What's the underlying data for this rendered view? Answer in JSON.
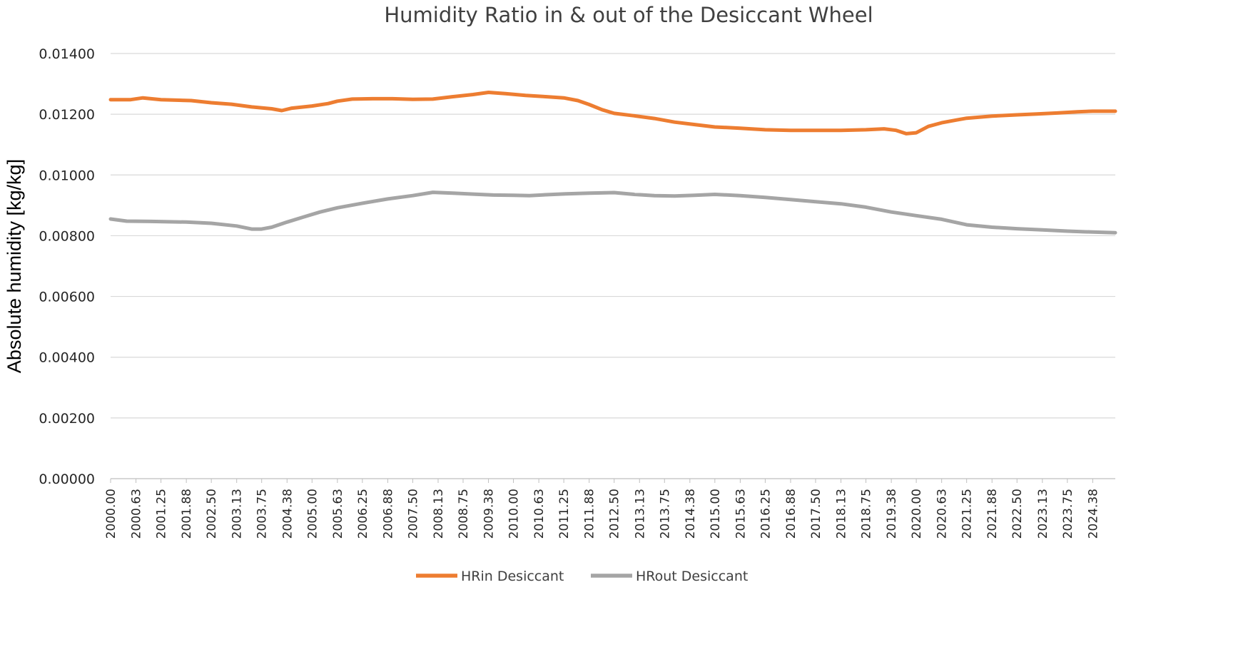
{
  "chart_data": {
    "type": "line",
    "title": "Humidity Ratio in & out of the Desiccant Wheel",
    "xlabel": "",
    "ylabel": "Absolute humidity [kg/kg]",
    "ylim": [
      0,
      0.014
    ],
    "yticks": [
      "0.00000",
      "0.00200",
      "0.00400",
      "0.00600",
      "0.00800",
      "0.01000",
      "0.01200",
      "0.01400"
    ],
    "xlim": [
      2000.0,
      2024.94
    ],
    "xticks": [
      "2000.00",
      "2000.63",
      "2001.25",
      "2001.88",
      "2002.50",
      "2003.13",
      "2003.75",
      "2004.38",
      "2005.00",
      "2005.63",
      "2006.25",
      "2006.88",
      "2007.50",
      "2008.13",
      "2008.75",
      "2009.38",
      "2010.00",
      "2010.63",
      "2011.25",
      "2011.88",
      "2012.50",
      "2013.13",
      "2013.75",
      "2014.38",
      "2015.00",
      "2015.63",
      "2016.25",
      "2016.88",
      "2017.50",
      "2018.13",
      "2018.75",
      "2019.38",
      "2020.00",
      "2020.63",
      "2021.25",
      "2021.88",
      "2022.50",
      "2023.13",
      "2023.75",
      "2024.38"
    ],
    "grid": true,
    "legend_position": "bottom",
    "series": [
      {
        "name": "HRin Desiccant",
        "color": "#ED7D31",
        "x": [
          2000.0,
          2000.5,
          2000.8,
          2001.25,
          2002.0,
          2002.5,
          2003.0,
          2003.5,
          2004.0,
          2004.25,
          2004.5,
          2005.0,
          2005.4,
          2005.63,
          2006.0,
          2006.5,
          2007.0,
          2007.5,
          2008.0,
          2008.5,
          2009.0,
          2009.38,
          2009.8,
          2010.3,
          2010.8,
          2011.25,
          2011.6,
          2011.88,
          2012.2,
          2012.5,
          2013.0,
          2013.5,
          2014.0,
          2014.5,
          2015.0,
          2015.63,
          2016.25,
          2016.88,
          2017.5,
          2018.13,
          2018.75,
          2019.2,
          2019.5,
          2019.75,
          2020.0,
          2020.3,
          2020.63,
          2021.0,
          2021.25,
          2021.88,
          2022.5,
          2023.0,
          2023.5,
          2024.0,
          2024.38,
          2024.94
        ],
        "values": [
          0.01248,
          0.01248,
          0.01254,
          0.01248,
          0.01245,
          0.01238,
          0.01233,
          0.01224,
          0.01218,
          0.01212,
          0.0122,
          0.01227,
          0.01235,
          0.01243,
          0.0125,
          0.01251,
          0.01251,
          0.01249,
          0.0125,
          0.01258,
          0.01265,
          0.01272,
          0.01268,
          0.01262,
          0.01258,
          0.01254,
          0.01245,
          0.01232,
          0.01215,
          0.01203,
          0.01195,
          0.01186,
          0.01174,
          0.01166,
          0.01158,
          0.01154,
          0.01149,
          0.01147,
          0.01147,
          0.01147,
          0.01149,
          0.01152,
          0.01147,
          0.01136,
          0.01139,
          0.0116,
          0.01172,
          0.01181,
          0.01187,
          0.01194,
          0.01198,
          0.01201,
          0.01204,
          0.01208,
          0.0121,
          0.0121
        ]
      },
      {
        "name": "HRout Desiccant",
        "color": "#A5A5A5",
        "x": [
          2000.0,
          2000.4,
          2001.0,
          2001.88,
          2002.5,
          2003.13,
          2003.5,
          2003.75,
          2004.0,
          2004.38,
          2004.8,
          2005.2,
          2005.63,
          2006.25,
          2006.88,
          2007.5,
          2008.0,
          2008.5,
          2009.0,
          2009.5,
          2010.0,
          2010.4,
          2010.8,
          2011.3,
          2011.88,
          2012.5,
          2013.0,
          2013.5,
          2014.0,
          2014.5,
          2015.0,
          2015.63,
          2016.25,
          2016.88,
          2017.5,
          2018.13,
          2018.75,
          2019.38,
          2020.0,
          2020.63,
          2021.25,
          2021.88,
          2022.5,
          2023.13,
          2023.75,
          2024.38,
          2024.94
        ],
        "values": [
          0.00855,
          0.00848,
          0.00847,
          0.00845,
          0.00841,
          0.00832,
          0.00822,
          0.00822,
          0.00828,
          0.00845,
          0.00862,
          0.00878,
          0.00892,
          0.00907,
          0.00921,
          0.00932,
          0.00943,
          0.0094,
          0.00937,
          0.00934,
          0.00933,
          0.00932,
          0.00935,
          0.00938,
          0.0094,
          0.00942,
          0.00936,
          0.00932,
          0.00931,
          0.00933,
          0.00936,
          0.00932,
          0.00926,
          0.00919,
          0.00912,
          0.00905,
          0.00894,
          0.00878,
          0.00866,
          0.00854,
          0.00836,
          0.00828,
          0.00823,
          0.00819,
          0.00815,
          0.00812,
          0.0081
        ]
      }
    ]
  }
}
